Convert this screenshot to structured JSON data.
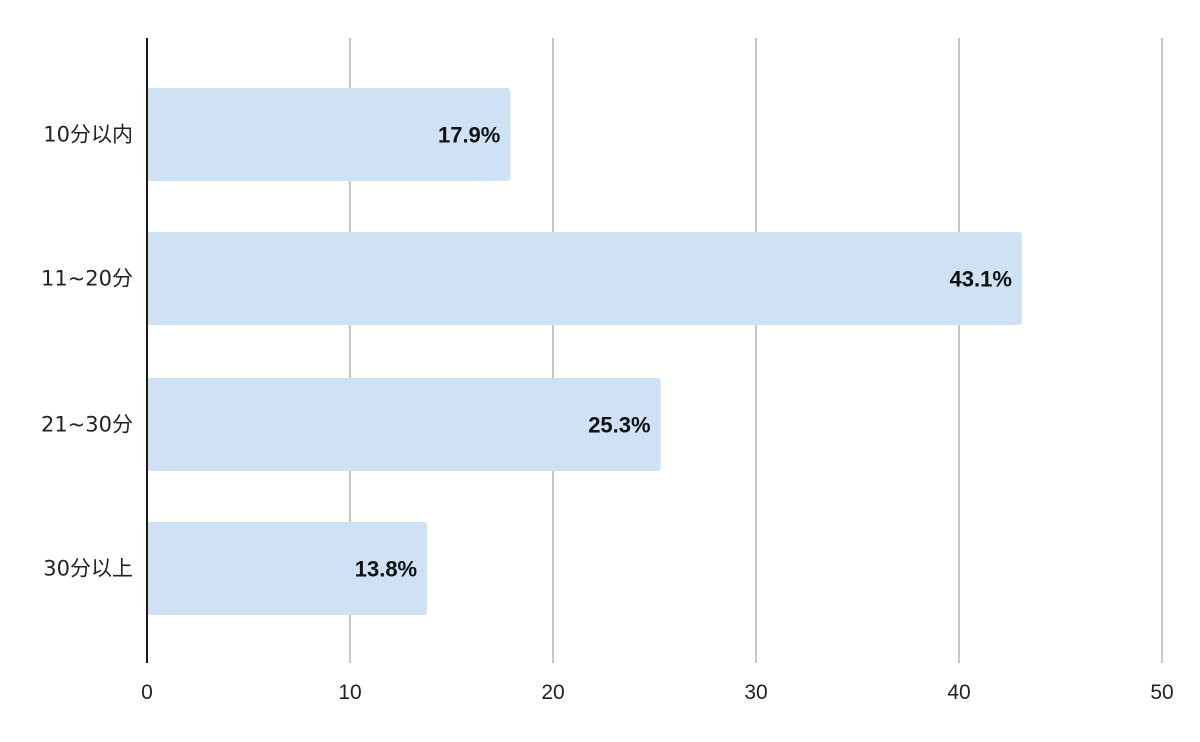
{
  "chart_data": {
    "type": "bar",
    "orientation": "horizontal",
    "categories": [
      "10分以内",
      "11~20分",
      "21~30分",
      "30分以上"
    ],
    "values": [
      17.9,
      43.1,
      25.3,
      13.8
    ],
    "data_labels": [
      "17.9%",
      "43.1%",
      "25.3%",
      "13.8%"
    ],
    "xlim": [
      0,
      50
    ],
    "xticks": [
      0,
      10,
      20,
      30,
      40,
      50
    ],
    "grid": "vertical",
    "legend": "none",
    "bar_color": "#cfe2f3",
    "grid_color": "#c6c6c6",
    "axis_color": "#1a1a1a"
  }
}
